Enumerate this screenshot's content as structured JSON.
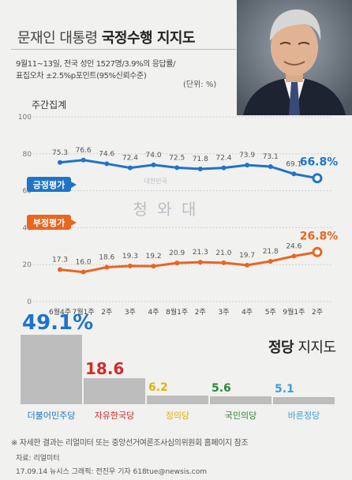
{
  "title": {
    "plain": "문재인 대통령",
    "bold": "국정수행 지지도"
  },
  "survey_note": {
    "line1": "9월11~13일, 전국 성인 1527명/3.9%의 응답률/",
    "line2": "표집오차 ±2.5%p포인트(95%신뢰수준)",
    "unit": "(단위: %)"
  },
  "weekly_label": "주간집계",
  "watermark": {
    "small": "대한민국",
    "large": "청 와 대"
  },
  "chart_data": {
    "type": "line",
    "categories": [
      "6월4주",
      "7월1주",
      "2주",
      "3주",
      "4주",
      "8월1주",
      "2주",
      "3주",
      "4주",
      "5주",
      "9월1주",
      "2주"
    ],
    "ylim": [
      0,
      100
    ],
    "y_ticks": [
      "0",
      "20",
      "40",
      "60",
      "80",
      "100"
    ],
    "series": [
      {
        "name": "긍정평가",
        "color": "#1e74c9",
        "values": [
          75.3,
          76.6,
          74.6,
          72.4,
          74.0,
          72.5,
          71.8,
          72.4,
          73.9,
          73.1,
          69.1,
          66.8
        ],
        "labels": [
          "75.3",
          "76.6",
          "74.6",
          "72.4",
          "74.0",
          "72.5",
          "71.8",
          "72.4",
          "73.9",
          "73.1",
          "69.1",
          "66.8%"
        ]
      },
      {
        "name": "부정평가",
        "color": "#e8661f",
        "values": [
          17.3,
          16.0,
          18.6,
          19.3,
          19.2,
          20.9,
          21.3,
          21.0,
          19.7,
          21.8,
          24.6,
          26.8
        ],
        "labels": [
          "17.3",
          "16.0",
          "18.6",
          "19.3",
          "19.2",
          "20.9",
          "21.3",
          "21.0",
          "19.7",
          "21.8",
          "24.6",
          "26.8%"
        ]
      }
    ]
  },
  "party": {
    "title_bold": "정당",
    "title_rest": " 지지도",
    "items": [
      {
        "name": "더불어민주당",
        "value": 49.1,
        "label": "49.1%",
        "color": "#1e74c9"
      },
      {
        "name": "자유한국당",
        "value": 18.6,
        "label": "18.6",
        "color": "#d22b2b"
      },
      {
        "name": "정의당",
        "value": 6.2,
        "label": "6.2",
        "color": "#e3b100"
      },
      {
        "name": "국민의당",
        "value": 5.6,
        "label": "5.6",
        "color": "#2e8b35"
      },
      {
        "name": "바른정당",
        "value": 5.1,
        "label": "5.1",
        "color": "#3aa0d8"
      }
    ]
  },
  "footnote": "※ 자세한 결과는 리얼미터 또는 중앙선거여론조사심의위원회 홈페이지 참조",
  "credit1": "자료: 리얼미터",
  "credit2": "17.09.14 뉴시스 그래픽: 전진우 기자 618tue@newsis.com"
}
